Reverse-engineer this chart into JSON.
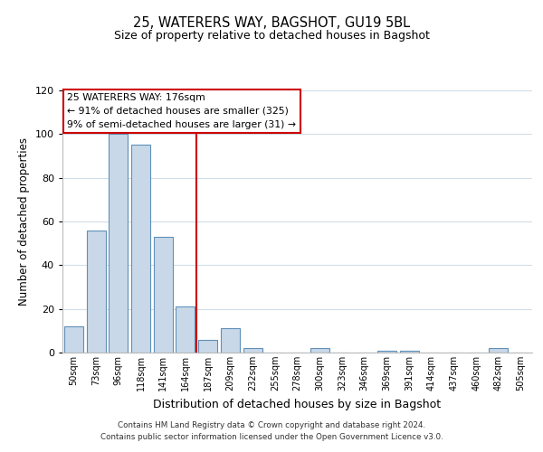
{
  "title": "25, WATERERS WAY, BAGSHOT, GU19 5BL",
  "subtitle": "Size of property relative to detached houses in Bagshot",
  "xlabel": "Distribution of detached houses by size in Bagshot",
  "ylabel": "Number of detached properties",
  "bar_labels": [
    "50sqm",
    "73sqm",
    "96sqm",
    "118sqm",
    "141sqm",
    "164sqm",
    "187sqm",
    "209sqm",
    "232sqm",
    "255sqm",
    "278sqm",
    "300sqm",
    "323sqm",
    "346sqm",
    "369sqm",
    "391sqm",
    "414sqm",
    "437sqm",
    "460sqm",
    "482sqm",
    "505sqm"
  ],
  "bar_values": [
    12,
    56,
    100,
    95,
    53,
    21,
    6,
    11,
    2,
    0,
    0,
    2,
    0,
    0,
    1,
    1,
    0,
    0,
    0,
    2,
    0
  ],
  "bar_color": "#c8d8e8",
  "bar_edge_color": "#6090b8",
  "vline_x": 5.5,
  "vline_color": "#cc0000",
  "ylim": [
    0,
    120
  ],
  "yticks": [
    0,
    20,
    40,
    60,
    80,
    100,
    120
  ],
  "annotation_title": "25 WATERERS WAY: 176sqm",
  "annotation_line1": "← 91% of detached houses are smaller (325)",
  "annotation_line2": "9% of semi-detached houses are larger (31) →",
  "annotation_box_color": "#ffffff",
  "annotation_box_edge": "#cc0000",
  "footer1": "Contains HM Land Registry data © Crown copyright and database right 2024.",
  "footer2": "Contains public sector information licensed under the Open Government Licence v3.0.",
  "background_color": "#ffffff",
  "grid_color": "#d0dde8"
}
